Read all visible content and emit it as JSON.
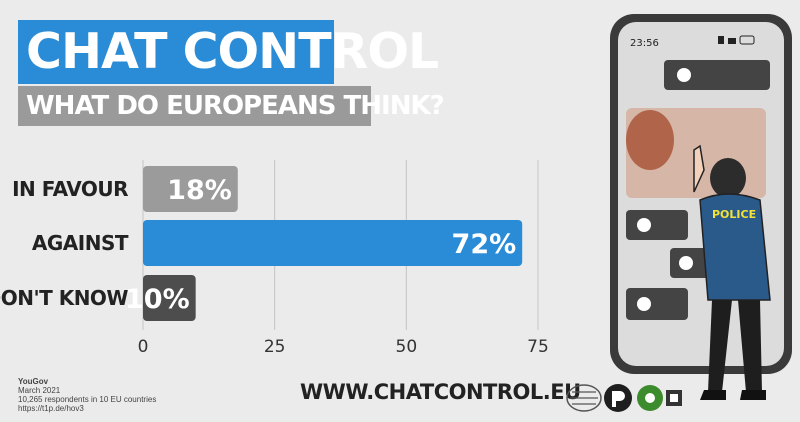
{
  "header": {
    "title": "CHAT CONTROL",
    "subtitle": "WHAT DO EUROPEANS THINK?"
  },
  "chart_data": {
    "type": "bar",
    "orientation": "horizontal",
    "title": "CHAT CONTROL",
    "subtitle": "WHAT DO EUROPEANS THINK?",
    "categories": [
      "IN FAVOUR",
      "AGAINST",
      "DON'T KNOW"
    ],
    "values": [
      18,
      72,
      10
    ],
    "value_labels": [
      "18%",
      "72%",
      "10%"
    ],
    "bar_colors": [
      "#9b9b9b",
      "#2a8cd6",
      "#4d4d4d"
    ],
    "xticks": [
      0,
      25,
      50,
      75
    ],
    "xlim": [
      0,
      75
    ],
    "grid": true,
    "xlabel": "",
    "ylabel": ""
  },
  "source": {
    "name": "YouGov",
    "date": "March 2021",
    "sample": "10,265 respondents in 10 EU countries",
    "link": "https://t1p.de/hov3"
  },
  "footer": {
    "website": "WWW.CHATCONTROL.EU"
  },
  "illustration": {
    "phone_time": "23:56",
    "police_label": "POLICE",
    "accent_color": "#2a5a8a"
  }
}
